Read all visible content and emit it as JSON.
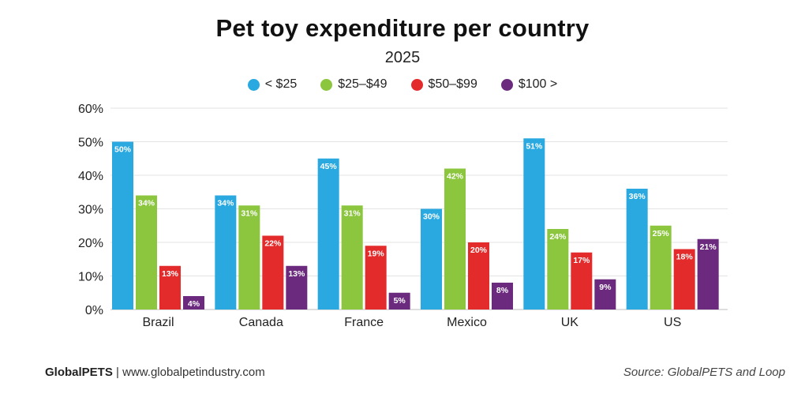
{
  "chart_data": {
    "type": "bar",
    "title": "Pet toy expenditure per country",
    "subtitle": "2025",
    "categories": [
      "Brazil",
      "Canada",
      "France",
      "Mexico",
      "UK",
      "US"
    ],
    "series": [
      {
        "name": "< $25",
        "color": "#29a9e0",
        "values": [
          50,
          34,
          45,
          30,
          51,
          36
        ]
      },
      {
        "name": "$25–$49",
        "color": "#8cc63f",
        "values": [
          34,
          31,
          31,
          42,
          24,
          25
        ]
      },
      {
        "name": "$50–$99",
        "color": "#e32b2b",
        "values": [
          13,
          22,
          19,
          20,
          17,
          18
        ]
      },
      {
        "name": "$100 >",
        "color": "#6b2a7e",
        "values": [
          4,
          13,
          5,
          8,
          9,
          21
        ]
      }
    ],
    "ylim": [
      0,
      60
    ],
    "yticks": [
      0,
      10,
      20,
      30,
      40,
      50,
      60
    ],
    "ytick_suffix": "%",
    "value_suffix": "%",
    "legend_position": "top-center",
    "grid": true
  },
  "footer": {
    "brand": "GlobalPETS",
    "separator": "|",
    "url": "www.globalpetindustry.com",
    "source": "Source: GlobalPETS and Loop"
  }
}
